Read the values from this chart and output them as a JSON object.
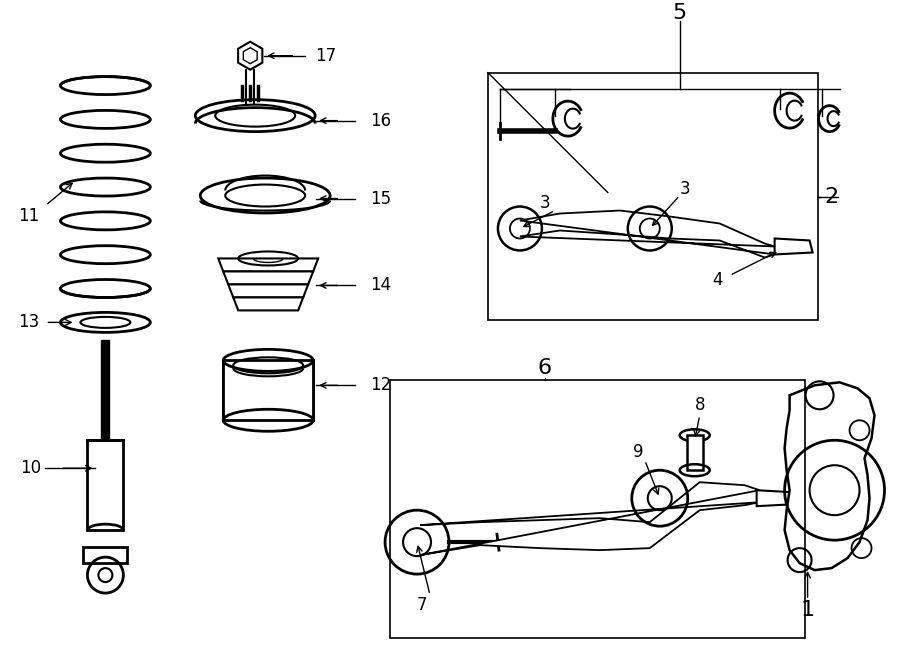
{
  "bg_color": "#ffffff",
  "line_color": "#000000",
  "fig_width": 9.0,
  "fig_height": 6.61,
  "dpi": 100,
  "label_fontsize": 12,
  "label_fontsize_large": 16
}
